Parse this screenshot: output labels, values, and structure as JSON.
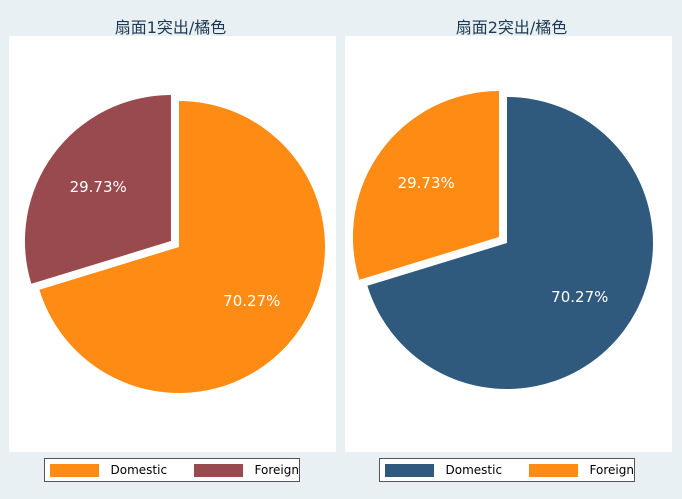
{
  "chart_data": [
    {
      "type": "pie",
      "title": "扇面1突出/橘色",
      "categories": [
        "Domestic",
        "Foreign"
      ],
      "values": [
        70.27,
        29.73
      ],
      "labels": [
        "70.27%",
        "29.73%"
      ],
      "colors": [
        "#fe8c14",
        "#994a4e"
      ],
      "exploded": "Foreign",
      "legend": "bottom"
    },
    {
      "type": "pie",
      "title": "扇面2突出/橘色",
      "categories": [
        "Domestic",
        "Foreign"
      ],
      "values": [
        70.27,
        29.73
      ],
      "labels": [
        "70.27%",
        "29.73%"
      ],
      "colors": [
        "#305a7d",
        "#fe8c14"
      ],
      "exploded": "Foreign",
      "legend": "bottom"
    }
  ]
}
